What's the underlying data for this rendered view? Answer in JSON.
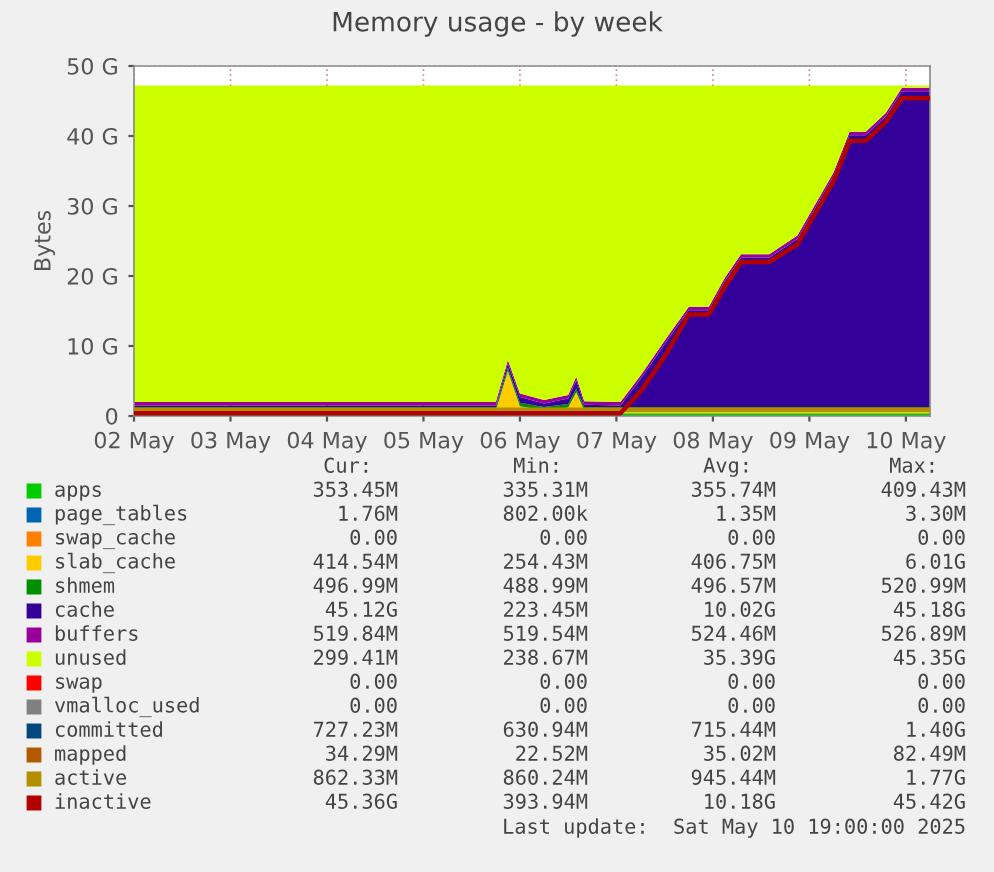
{
  "chart_data": {
    "type": "area",
    "stacked": true,
    "title": "Memory usage - by week",
    "ylabel": "Bytes",
    "x": [
      "2025-05-02T00:00",
      "2025-05-05T18:00",
      "2025-05-05T21:00",
      "2025-05-06T00:00",
      "2025-05-06T06:00",
      "2025-05-06T12:00",
      "2025-05-06T14:00",
      "2025-05-06T16:00",
      "2025-05-07T01:00",
      "2025-05-07T06:00",
      "2025-05-07T12:00",
      "2025-05-07T18:00",
      "2025-05-07T23:00",
      "2025-05-08T03:00",
      "2025-05-08T07:00",
      "2025-05-08T14:00",
      "2025-05-08T21:00",
      "2025-05-09T06:00",
      "2025-05-09T10:00",
      "2025-05-09T14:00",
      "2025-05-09T19:00",
      "2025-05-09T23:00",
      "2025-05-10T06:00"
    ],
    "xlim": [
      "2025-05-02T00:00",
      "2025-05-10T06:00"
    ],
    "xticks": [
      {
        "value": "2025-05-02",
        "label": "02 May"
      },
      {
        "value": "2025-05-03",
        "label": "03 May"
      },
      {
        "value": "2025-05-04",
        "label": "04 May"
      },
      {
        "value": "2025-05-05",
        "label": "05 May"
      },
      {
        "value": "2025-05-06",
        "label": "06 May"
      },
      {
        "value": "2025-05-07",
        "label": "07 May"
      },
      {
        "value": "2025-05-08",
        "label": "08 May"
      },
      {
        "value": "2025-05-09",
        "label": "09 May"
      },
      {
        "value": "2025-05-10",
        "label": "10 May"
      }
    ],
    "ylim": [
      0,
      50
    ],
    "yticks": [
      0,
      {
        "value": 10,
        "label": "10 G"
      },
      {
        "value": 20,
        "label": "20 G"
      },
      {
        "value": 30,
        "label": "30 G"
      },
      {
        "value": 40,
        "label": "40 G"
      },
      {
        "value": 50,
        "label": "50 G"
      }
    ],
    "grid": true,
    "legend": "bottom",
    "series": [
      {
        "name": "apps",
        "color": "#00cc00",
        "values": [
          0.4,
          0.4,
          0.4,
          0.4,
          0.4,
          0.4,
          0.4,
          0.4,
          0.4,
          0.4,
          0.4,
          0.4,
          0.4,
          0.4,
          0.4,
          0.4,
          0.4,
          0.4,
          0.4,
          0.4,
          0.4,
          0.4,
          0.4
        ]
      },
      {
        "name": "page_tables",
        "color": "#0066b3",
        "values": [
          null,
          null,
          null,
          null,
          null,
          null,
          null,
          null,
          null,
          null,
          null,
          null,
          null,
          null,
          null,
          null,
          null,
          null,
          null,
          null,
          null,
          null,
          null
        ]
      },
      {
        "name": "swap_cache",
        "color": "#ff8000",
        "values": [
          null,
          null,
          null,
          null,
          null,
          null,
          null,
          null,
          null,
          null,
          null,
          null,
          null,
          null,
          null,
          null,
          null,
          null,
          null,
          null,
          null,
          null,
          null
        ]
      },
      {
        "name": "slab_cache",
        "color": "#ffcc00",
        "values": [
          0.4,
          0.4,
          6.0,
          1.0,
          0.4,
          0.8,
          3.0,
          0.4,
          0.4,
          0.4,
          0.4,
          0.4,
          0.4,
          0.4,
          0.4,
          0.4,
          0.4,
          0.4,
          0.4,
          0.4,
          0.4,
          0.4,
          0.4
        ]
      },
      {
        "name": "shmem",
        "color": "#008f00",
        "values": [
          0.5,
          0.5,
          0.5,
          0.5,
          0.5,
          0.5,
          0.5,
          0.5,
          0.5,
          0.5,
          0.5,
          0.5,
          0.5,
          0.5,
          0.5,
          0.5,
          0.5,
          0.5,
          0.5,
          0.5,
          0.5,
          0.5,
          0.5
        ]
      },
      {
        "name": "cache",
        "color": "#330099",
        "values": [
          0.2,
          0.2,
          0.6,
          0.8,
          0.5,
          0.8,
          1.2,
          0.3,
          0.2,
          4,
          9,
          13.8,
          13.8,
          18,
          21.3,
          21.3,
          24,
          33,
          38.8,
          38.8,
          41.5,
          45.1,
          45.1
        ]
      },
      {
        "name": "buffers",
        "color": "#990099",
        "values": [
          0.5,
          0.5,
          0.5,
          0.5,
          0.5,
          0.5,
          0.5,
          0.5,
          0.5,
          0.5,
          0.5,
          0.5,
          0.5,
          0.5,
          0.5,
          0.5,
          0.5,
          0.5,
          0.5,
          0.5,
          0.5,
          0.5,
          0.5
        ]
      },
      {
        "name": "unused",
        "color": "#ccff00",
        "values": [
          45.2,
          45.2,
          39.2,
          44.0,
          44.9,
          44.2,
          41.6,
          45.1,
          45.2,
          41.4,
          36.4,
          31.6,
          31.6,
          27.4,
          24.1,
          24.1,
          21.4,
          12.4,
          6.6,
          6.6,
          3.9,
          0.3,
          0.3
        ]
      },
      {
        "name": "swap",
        "color": "#ff0000",
        "values": [
          null,
          null,
          null,
          null,
          null,
          null,
          null,
          null,
          null,
          null,
          null,
          null,
          null,
          null,
          null,
          null,
          null,
          null,
          null,
          null,
          null,
          null,
          null
        ]
      },
      {
        "name": "vmalloc_used",
        "type": "line",
        "color": "#808080",
        "values": [
          null,
          null,
          null,
          null,
          null,
          null,
          null,
          null,
          null,
          null,
          null,
          null,
          null,
          null,
          null,
          null,
          null,
          null,
          null,
          null,
          null,
          null,
          null
        ]
      },
      {
        "name": "committed",
        "type": "line",
        "color": "#00487d",
        "values": [
          null,
          null,
          null,
          null,
          null,
          null,
          null,
          null,
          null,
          null,
          null,
          null,
          null,
          null,
          null,
          null,
          null,
          null,
          null,
          null,
          null,
          null,
          null
        ]
      },
      {
        "name": "mapped",
        "type": "line",
        "color": "#b35a00",
        "values": [
          null,
          null,
          null,
          null,
          null,
          null,
          null,
          null,
          null,
          null,
          null,
          null,
          null,
          null,
          null,
          null,
          null,
          null,
          null,
          null,
          null,
          null,
          null
        ]
      },
      {
        "name": "active",
        "type": "line",
        "color": "#b38f00",
        "values": [
          0.9,
          0.9,
          0.9,
          0.9,
          0.9,
          0.9,
          0.9,
          0.9,
          0.9,
          0.9,
          0.9,
          0.9,
          0.9,
          0.9,
          0.9,
          0.9,
          0.9,
          0.9,
          0.9,
          0.9,
          0.9,
          0.9,
          0.9
        ]
      },
      {
        "name": "inactive",
        "type": "line",
        "color": "#b30000",
        "values": [
          0.4,
          0.4,
          0.4,
          0.4,
          0.4,
          0.4,
          0.4,
          0.4,
          0.4,
          3.5,
          8.5,
          14.5,
          14.5,
          18.5,
          22,
          22,
          24.5,
          33.5,
          39.3,
          39.3,
          42,
          45.4,
          45.4
        ]
      }
    ],
    "annotations": [
      "Cur:",
      "Min:",
      "Avg:",
      "Max:",
      "353.45M",
      "335.31M",
      "355.74M",
      "409.43M",
      "1.76M",
      "802.00k",
      "1.35M",
      "3.30M",
      "0.00",
      "0.00",
      "0.00",
      "0.00",
      "414.54M",
      "254.43M",
      "406.75M",
      "6.01G",
      "496.99M",
      "488.99M",
      "496.57M",
      "520.99M",
      "45.12G",
      "223.45M",
      "10.02G",
      "45.18G",
      "519.84M",
      "519.54M",
      "524.46M",
      "526.89M",
      "299.41M",
      "238.67M",
      "35.39G",
      "45.35G",
      "0.00",
      "0.00",
      "0.00",
      "0.00",
      "0.00",
      "0.00",
      "0.00",
      "0.00",
      "727.23M",
      "630.94M",
      "715.44M",
      "1.40G",
      "34.29M",
      "22.52M",
      "35.02M",
      "82.49M",
      "862.33M",
      "860.24M",
      "945.44M",
      "1.77G",
      "45.36G",
      "393.94M",
      "10.18G",
      "45.42G",
      "Last update:  Sat May 10 19:00:00 2025"
    ]
  }
}
